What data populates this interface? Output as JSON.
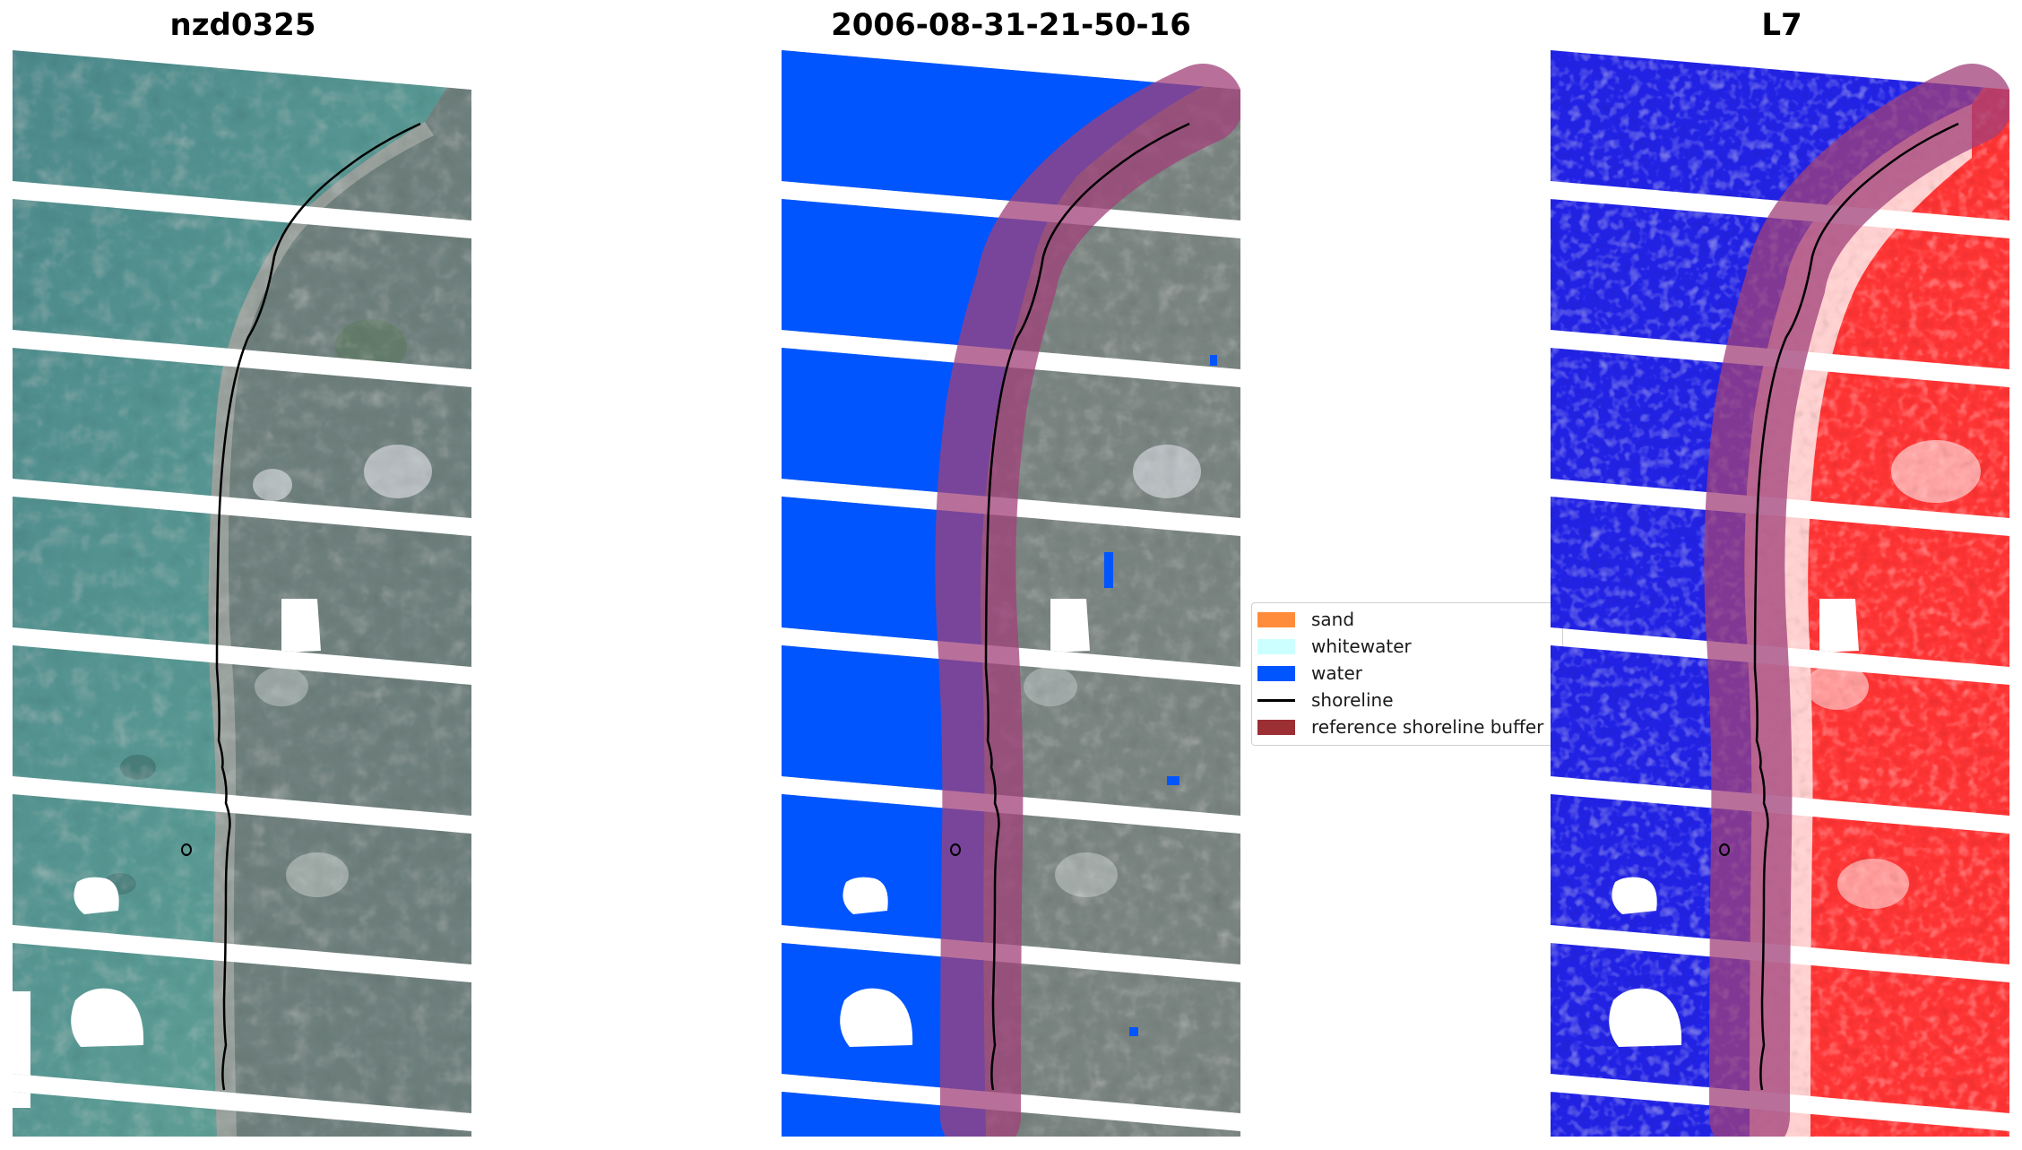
{
  "panels": [
    {
      "id": "rgb",
      "title": "nzd0325"
    },
    {
      "id": "classified",
      "title": "2006-08-31-21-50-16"
    },
    {
      "id": "index",
      "title": "L7"
    }
  ],
  "legend": {
    "items": [
      {
        "key": "sand",
        "label": "sand",
        "color": "#ff8c3a",
        "kind": "patch"
      },
      {
        "key": "whitewater",
        "label": "whitewater",
        "color": "#ccffff",
        "kind": "patch"
      },
      {
        "key": "water",
        "label": "water",
        "color": "#0055ff",
        "kind": "patch"
      },
      {
        "key": "shoreline",
        "label": "shoreline",
        "color": "#000000",
        "kind": "line"
      },
      {
        "key": "buffer",
        "label": "reference shoreline buffer",
        "color": "#9b2f34",
        "kind": "patch"
      }
    ]
  },
  "colors": {
    "ocean_rgb": "#4a8c8a",
    "land_rgb": "#7a8a82",
    "water_class": "#0055ff",
    "water_index": "#2020e8",
    "land_index": "#ff3030",
    "buffer_overlay": "#a0407a"
  }
}
